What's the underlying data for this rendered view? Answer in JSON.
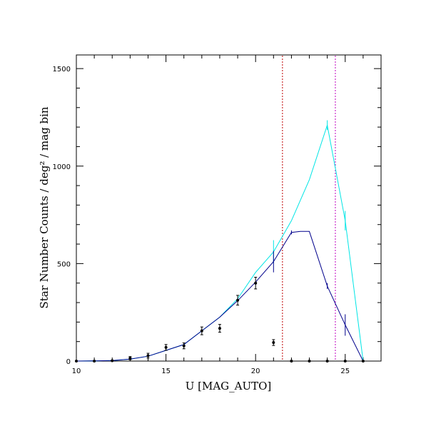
{
  "chart_data": {
    "type": "line",
    "xlabel": "U [MAG_AUTO]",
    "ylabel": "Star Number Counts / deg² / mag bin",
    "xlim": [
      10,
      27
    ],
    "ylim": [
      0,
      1570
    ],
    "xticks": [
      10,
      15,
      20,
      25
    ],
    "xtick_labels": [
      "10",
      "15",
      "20",
      "25"
    ],
    "yticks": [
      0,
      500,
      1000,
      1500
    ],
    "ytick_labels": [
      "0",
      "500",
      "1000",
      "1500"
    ],
    "grid": false,
    "series": [
      {
        "kind": "line",
        "color": "#00e5e5",
        "x": [
          10,
          11,
          12,
          13,
          14,
          15,
          16,
          17,
          18,
          19,
          20,
          21,
          22,
          23,
          24,
          25,
          26
        ],
        "y": [
          0,
          1,
          3,
          10,
          25,
          55,
          85,
          155,
          225,
          320,
          455,
          560,
          720,
          930,
          1210,
          720,
          0
        ],
        "err": [
          0,
          0,
          0,
          0,
          0,
          0,
          0,
          0,
          0,
          0,
          0,
          60,
          0,
          0,
          25,
          50,
          0
        ]
      },
      {
        "kind": "line",
        "color": "#00008b",
        "x": [
          10,
          11,
          12,
          13,
          14,
          15,
          16,
          17,
          18,
          19,
          20,
          21,
          22,
          22.5,
          23,
          24,
          25,
          26
        ],
        "y": [
          0,
          1,
          3,
          10,
          25,
          55,
          85,
          155,
          225,
          310,
          405,
          510,
          660,
          665,
          665,
          385,
          185,
          0
        ],
        "err": [
          0,
          0,
          0,
          0,
          0,
          0,
          0,
          0,
          0,
          0,
          0,
          55,
          10,
          0,
          0,
          15,
          55,
          0
        ]
      },
      {
        "kind": "points",
        "color": "#000000",
        "x": [
          10,
          11,
          12,
          13,
          14,
          15,
          16,
          17,
          18,
          19,
          20,
          21,
          22,
          23,
          24,
          25,
          26
        ],
        "y": [
          0,
          0,
          2,
          15,
          28,
          70,
          78,
          155,
          168,
          312,
          400,
          95,
          0,
          0,
          0,
          0,
          0
        ],
        "err": [
          0,
          0,
          2,
          8,
          12,
          15,
          15,
          20,
          20,
          25,
          30,
          15,
          0,
          0,
          0,
          0,
          0
        ]
      }
    ],
    "vlines": [
      {
        "x": 21.5,
        "color": "#c00000"
      },
      {
        "x": 24.45,
        "color": "#c000c0"
      }
    ]
  }
}
